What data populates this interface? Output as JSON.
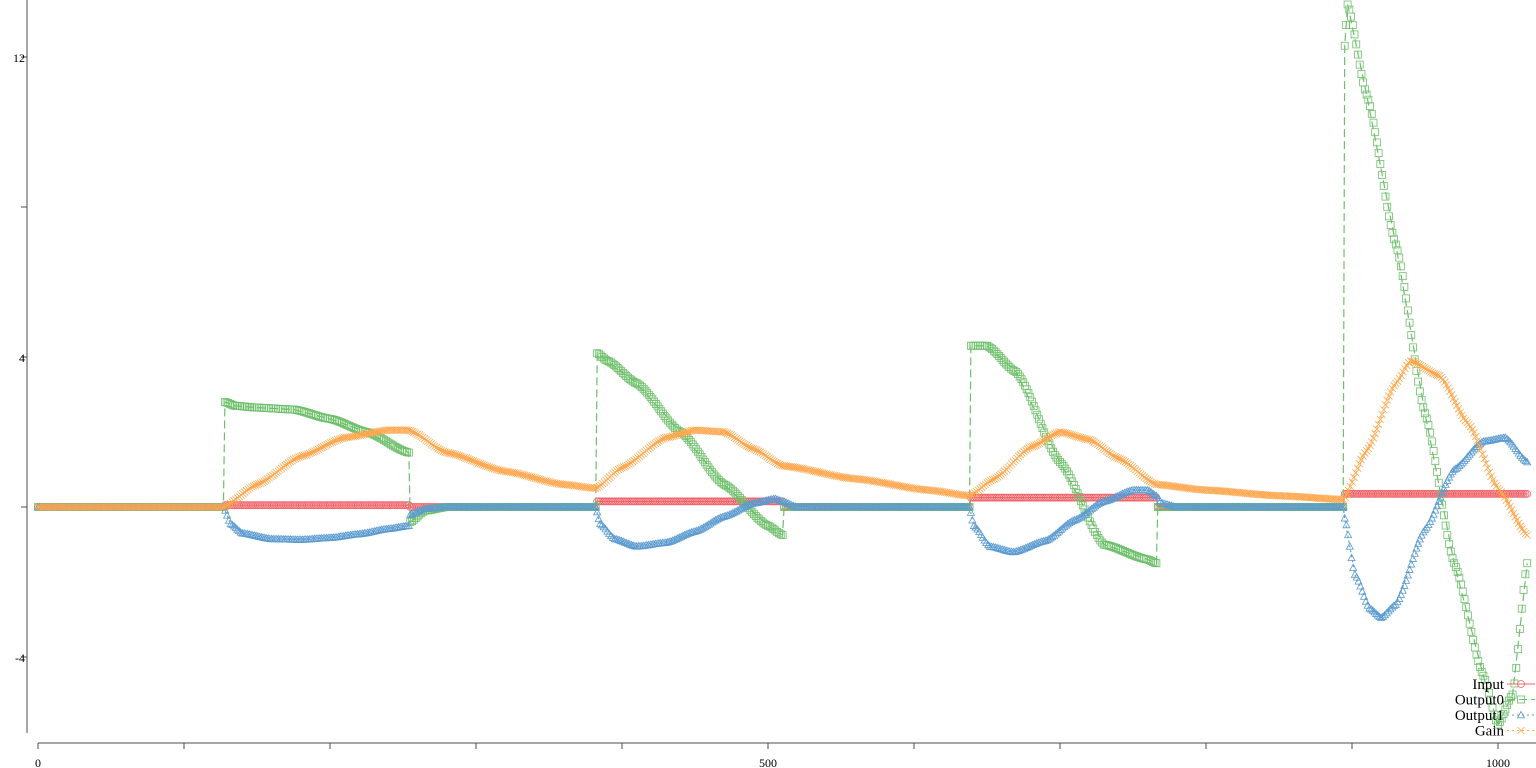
{
  "chart_data": {
    "type": "line",
    "title": "",
    "xlabel": "",
    "ylabel": "",
    "xlim": [
      0,
      1020
    ],
    "ylim": [
      -6,
      13.5
    ],
    "x_ticks": [
      0,
      100,
      200,
      300,
      400,
      500,
      600,
      700,
      800,
      900,
      1000
    ],
    "x_tick_labels": [
      "0",
      "",
      "",
      "",
      "",
      "500",
      "",
      "",
      "",
      "",
      "1000"
    ],
    "y_ticks": [
      -4,
      0,
      4,
      8,
      12
    ],
    "y_tick_labels": [
      "-4",
      "",
      "4",
      "",
      "12"
    ],
    "grid": false,
    "legend_position": "bottom-right",
    "series": [
      {
        "name": "Input",
        "color": "#e41a1c",
        "marker": "circle",
        "line": "solid",
        "x": [
          0,
          127,
          128,
          254,
          255,
          382,
          383,
          510,
          511,
          638,
          639,
          766,
          767,
          894,
          895,
          1020
        ],
        "y": [
          0,
          0,
          0.05,
          0.05,
          0,
          0,
          0.15,
          0.15,
          0,
          0,
          0.25,
          0.25,
          0,
          0,
          0.35,
          0.35
        ]
      },
      {
        "name": "Output0",
        "color": "#4daf4a",
        "marker": "square",
        "line": "dashed",
        "x": [
          0,
          127,
          128,
          135,
          150,
          175,
          200,
          225,
          254,
          255,
          265,
          280,
          300,
          382,
          383,
          390,
          410,
          440,
          470,
          500,
          510,
          511,
          530,
          560,
          638,
          639,
          650,
          670,
          700,
          730,
          760,
          766,
          767,
          780,
          800,
          840,
          894,
          895,
          897,
          910,
          930,
          950,
          970,
          990,
          1000,
          1010,
          1020
        ],
        "y": [
          0,
          0,
          2.8,
          2.7,
          2.65,
          2.6,
          2.35,
          2.0,
          1.45,
          -0.4,
          -0.1,
          0,
          0,
          0,
          4.1,
          3.9,
          3.3,
          2.0,
          0.6,
          -0.5,
          -0.75,
          0,
          0,
          0,
          0,
          4.3,
          4.3,
          3.6,
          1.2,
          -1.0,
          -1.4,
          -1.5,
          0,
          0,
          0,
          0,
          0,
          12.3,
          13.4,
          11.0,
          7.0,
          2.5,
          -1.5,
          -4.5,
          -5.8,
          -5.0,
          -1.5
        ]
      },
      {
        "name": "Output1",
        "color": "#377eb8",
        "marker": "triangle",
        "line": "dotted",
        "x": [
          0,
          127,
          132,
          140,
          160,
          180,
          200,
          220,
          240,
          254,
          255,
          265,
          280,
          300,
          382,
          385,
          395,
          410,
          430,
          450,
          470,
          490,
          505,
          510,
          520,
          540,
          638,
          641,
          652,
          668,
          690,
          710,
          730,
          750,
          760,
          766,
          770,
          780,
          800,
          894,
          895,
          902,
          912,
          920,
          930,
          950,
          970,
          990,
          1005,
          1020
        ],
        "y": [
          0,
          0,
          -0.45,
          -0.7,
          -0.85,
          -0.87,
          -0.82,
          -0.72,
          -0.58,
          -0.5,
          -0.2,
          -0.05,
          0,
          0,
          0,
          -0.45,
          -0.85,
          -1.05,
          -0.95,
          -0.65,
          -0.25,
          0.1,
          0.22,
          0.15,
          0,
          0,
          0,
          -0.5,
          -1.05,
          -1.2,
          -0.9,
          -0.35,
          0.15,
          0.45,
          0.45,
          0.3,
          0.1,
          0,
          0,
          0,
          -0.3,
          -1.8,
          -2.7,
          -2.95,
          -2.6,
          -0.6,
          1.0,
          1.75,
          1.85,
          1.2
        ]
      },
      {
        "name": "Gain",
        "color": "#ff7f00",
        "marker": "x",
        "line": "dotted",
        "x": [
          0,
          127,
          150,
          180,
          210,
          240,
          254,
          280,
          320,
          360,
          382,
          400,
          430,
          450,
          470,
          490,
          510,
          560,
          610,
          638,
          655,
          680,
          700,
          720,
          740,
          766,
          800,
          850,
          894,
          910,
          930,
          940,
          960,
          980,
          1000,
          1020
        ],
        "y": [
          0,
          0,
          0.6,
          1.35,
          1.85,
          2.05,
          2.05,
          1.45,
          0.95,
          0.6,
          0.5,
          1.05,
          1.85,
          2.05,
          2.0,
          1.55,
          1.1,
          0.75,
          0.45,
          0.3,
          0.75,
          1.6,
          2.0,
          1.8,
          1.3,
          0.6,
          0.45,
          0.3,
          0.2,
          1.5,
          3.3,
          3.9,
          3.5,
          2.2,
          0.5,
          -0.75
        ]
      }
    ]
  }
}
